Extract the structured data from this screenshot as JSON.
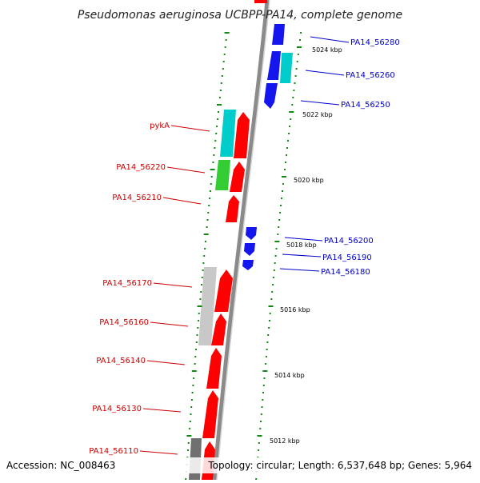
{
  "title": "Pseudomonas aeruginosa UCBPP-PA14, complete genome",
  "footer": {
    "accession": "Accession: NC_008463",
    "topology": "Topology: circular; Length: 6,537,648 bp; Genes: 5,964"
  },
  "colors": {
    "backbone": "#8a8a8a",
    "forward_gene": "#ff0000",
    "reverse_gene": "#0000ee",
    "tick": "#118811",
    "cyan_gene": "#00cccc",
    "green_gene": "#33cc33",
    "gray_gene": "#c8c8c8",
    "dark_gray_gene": "#707070",
    "forward_label": "#cc0000",
    "reverse_label": "#0000cc"
  },
  "kbp_labels": [
    "5024 kbp",
    "5022 kbp",
    "5020 kbp",
    "5018 kbp",
    "5016 kbp",
    "5014 kbp",
    "5012 kbp"
  ],
  "genes_reverse": [
    {
      "name": "PA14_56280"
    },
    {
      "name": "PA14_56260"
    },
    {
      "name": "PA14_56250"
    },
    {
      "name": "PA14_56200"
    },
    {
      "name": "PA14_56190"
    },
    {
      "name": "PA14_56180"
    }
  ],
  "genes_forward": [
    {
      "name": "pykA"
    },
    {
      "name": "PA14_56220"
    },
    {
      "name": "PA14_56210"
    },
    {
      "name": "PA14_56170"
    },
    {
      "name": "PA14_56160"
    },
    {
      "name": "PA14_56140"
    },
    {
      "name": "PA14_56130"
    },
    {
      "name": "PA14_56110"
    }
  ]
}
